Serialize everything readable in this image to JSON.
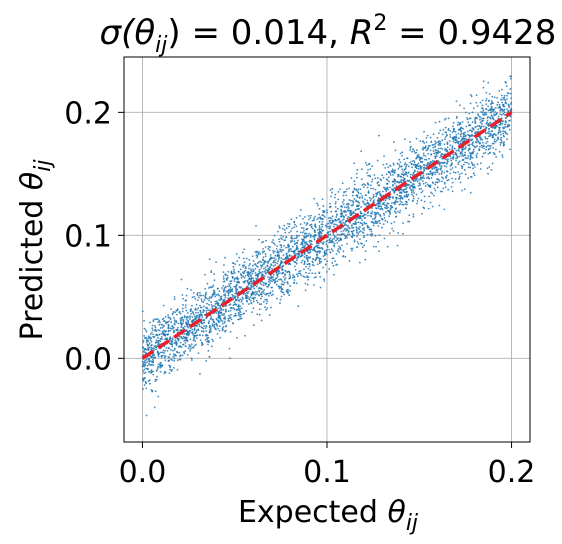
{
  "chart_data": {
    "type": "scatter",
    "title": {
      "lhs": "σ(θ",
      "lhs_sub": "ij",
      "lhs_close": ") = 0.014, ",
      "r": "R",
      "r_sup": "2",
      "rhs": " = 0.9428"
    },
    "xlabel": {
      "text": "Expected ",
      "symbol": "θ",
      "sub": "ij"
    },
    "ylabel": {
      "text": "Predicted ",
      "symbol": "θ",
      "sub": "ij"
    },
    "xlim": [
      -0.01,
      0.21
    ],
    "ylim": [
      -0.068,
      0.245
    ],
    "xticks": [
      0.0,
      0.1,
      0.2
    ],
    "xtick_labels": [
      "0.0",
      "0.1",
      "0.2"
    ],
    "yticks": [
      0.0,
      0.1,
      0.2
    ],
    "ytick_labels": [
      "0.0",
      "0.1",
      "0.2"
    ],
    "grid": true,
    "series": [
      {
        "kind": "scatter",
        "color": "#1f77b4",
        "x_range": [
          0.0,
          0.2
        ],
        "point_count": 4000,
        "noise_sd": 0.014,
        "relation": "y = x + noise"
      },
      {
        "kind": "reference-line",
        "style": "dashed",
        "color": "#e8202a",
        "x": [
          0.0,
          0.2
        ],
        "y": [
          0.0,
          0.2
        ]
      }
    ]
  }
}
